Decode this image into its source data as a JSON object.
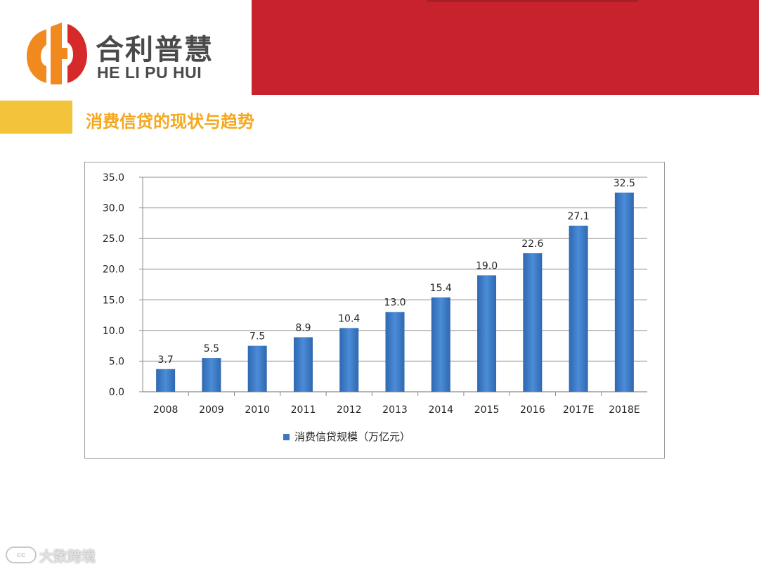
{
  "logo": {
    "cn": "合利普慧",
    "en": "HE LI PU HUI",
    "colors": {
      "orange": "#f08a1f",
      "red": "#d62a2a",
      "text": "#4a4a4a"
    }
  },
  "section": {
    "title": "消费信贷的现状与趋势"
  },
  "colors": {
    "banner": "#c8232c",
    "accent_bar": "#f3c33a",
    "title": "#f5a81e",
    "bar": "#3b78c4"
  },
  "chart_data": {
    "type": "bar",
    "categories": [
      "2008",
      "2009",
      "2010",
      "2011",
      "2012",
      "2013",
      "2014",
      "2015",
      "2016",
      "2017E",
      "2018E"
    ],
    "series": [
      {
        "name": "消费信贷规模（万亿元）",
        "values": [
          3.7,
          5.5,
          7.5,
          8.9,
          10.4,
          13.0,
          15.4,
          19.0,
          22.6,
          27.1,
          32.5
        ]
      }
    ],
    "yticks": [
      "0.0",
      "5.0",
      "10.0",
      "15.0",
      "20.0",
      "25.0",
      "30.0",
      "35.0"
    ],
    "ylim": [
      0,
      35
    ],
    "grid": true,
    "legend_position": "bottom"
  },
  "watermark": {
    "text": "大数跨境",
    "mark": "cc"
  }
}
